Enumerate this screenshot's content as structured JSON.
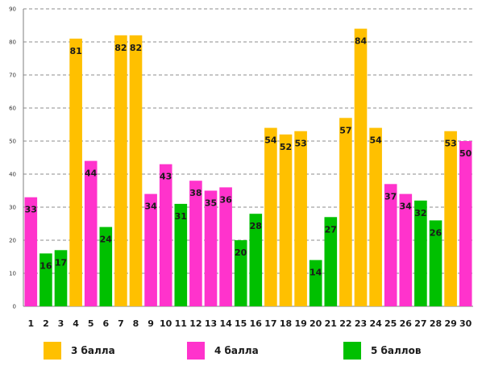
{
  "chart_data": {
    "type": "bar",
    "categories": [
      "1",
      "2",
      "3",
      "4",
      "5",
      "6",
      "7",
      "8",
      "9",
      "10",
      "11",
      "12",
      "13",
      "14",
      "15",
      "16",
      "17",
      "18",
      "19",
      "20",
      "21",
      "22",
      "23",
      "24",
      "25",
      "26",
      "27",
      "28",
      "29",
      "30"
    ],
    "values": [
      33,
      16,
      17,
      81,
      44,
      24,
      82,
      82,
      34,
      43,
      31,
      38,
      35,
      36,
      20,
      28,
      54,
      52,
      53,
      14,
      27,
      57,
      84,
      54,
      37,
      34,
      32,
      26,
      53,
      50
    ],
    "groups": [
      1,
      2,
      2,
      0,
      1,
      2,
      0,
      0,
      1,
      1,
      2,
      1,
      1,
      1,
      2,
      2,
      0,
      0,
      0,
      2,
      2,
      0,
      0,
      0,
      1,
      1,
      2,
      2,
      0,
      1
    ],
    "group_labels": [
      "3 балла",
      "4 балла",
      "5 баллов"
    ],
    "group_colors": [
      "#ffc000",
      "#ff33cc",
      "#00c000"
    ],
    "ylim": [
      0,
      90
    ],
    "yticks": [
      0,
      10,
      20,
      30,
      40,
      50,
      60,
      70,
      80,
      90
    ],
    "grid": true,
    "legend_position": "bottom",
    "title": "",
    "xlabel": "",
    "ylabel": ""
  }
}
